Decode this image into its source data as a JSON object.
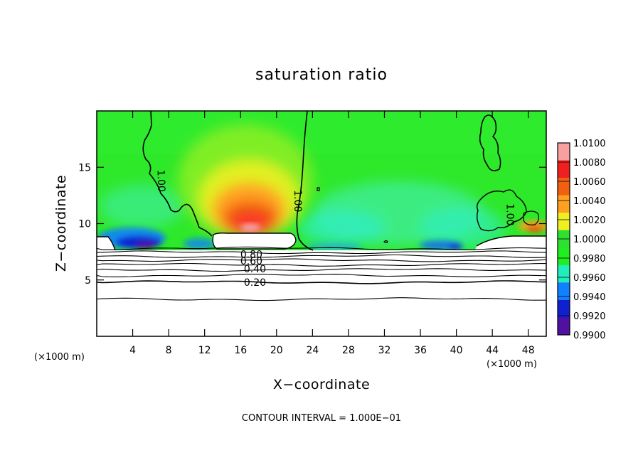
{
  "chart_data": {
    "type": "heatmap",
    "title": "saturation ratio",
    "xlabel": "X−coordinate",
    "ylabel": "Z−coordinate",
    "x_unit_label": "(×1000 m)",
    "y_unit_label": "(×1000 m)",
    "xlim": [
      0,
      50
    ],
    "ylim": [
      0,
      20
    ],
    "x_ticks": [
      4,
      8,
      12,
      16,
      20,
      24,
      28,
      32,
      36,
      40,
      44,
      48
    ],
    "y_ticks": [
      5,
      10,
      15
    ],
    "footer": "CONTOUR INTERVAL = 1.000E−01",
    "colorbar": {
      "labels": [
        "1.0100",
        "1.0080",
        "1.0060",
        "1.0040",
        "1.0020",
        "1.0000",
        "0.9980",
        "0.9960",
        "0.9940",
        "0.9920",
        "0.9900"
      ],
      "min": 0.99,
      "max": 1.01,
      "colors": [
        "#f6a0a0",
        "#ee2020",
        "#f06010",
        "#ffa020",
        "#eef020",
        "#30e030",
        "#20ee20",
        "#20eebb",
        "#1080ff",
        "#1020d0",
        "#5010a0"
      ]
    },
    "contour_labels": [
      {
        "text": "1.00",
        "x": 7.2,
        "z": 13.8,
        "angle": 88
      },
      {
        "text": "1.00",
        "x": 22.4,
        "z": 12.0,
        "angle": 90
      },
      {
        "text": "1.00",
        "x": 46.0,
        "z": 10.8,
        "angle": 90
      },
      {
        "text": "0.80",
        "x": 17.2,
        "z": 7.3,
        "angle": 0
      },
      {
        "text": "0.60",
        "x": 17.2,
        "z": 6.7,
        "angle": 0
      },
      {
        "text": "0.40",
        "x": 17.6,
        "z": 6.0,
        "angle": 0
      },
      {
        "text": "0.20",
        "x": 17.6,
        "z": 4.8,
        "angle": 0
      }
    ],
    "contour_levels_below_cloud": [
      {
        "value": 0.9,
        "z": 7.8
      },
      {
        "value": 0.8,
        "z": 7.45
      },
      {
        "value": 0.7,
        "z": 7.1
      },
      {
        "value": 0.6,
        "z": 6.75
      },
      {
        "value": 0.5,
        "z": 6.35
      },
      {
        "value": 0.4,
        "z": 5.9
      },
      {
        "value": 0.3,
        "z": 5.4
      },
      {
        "value": 0.2,
        "z": 4.8
      },
      {
        "value": 0.1,
        "z": 3.3
      }
    ]
  }
}
